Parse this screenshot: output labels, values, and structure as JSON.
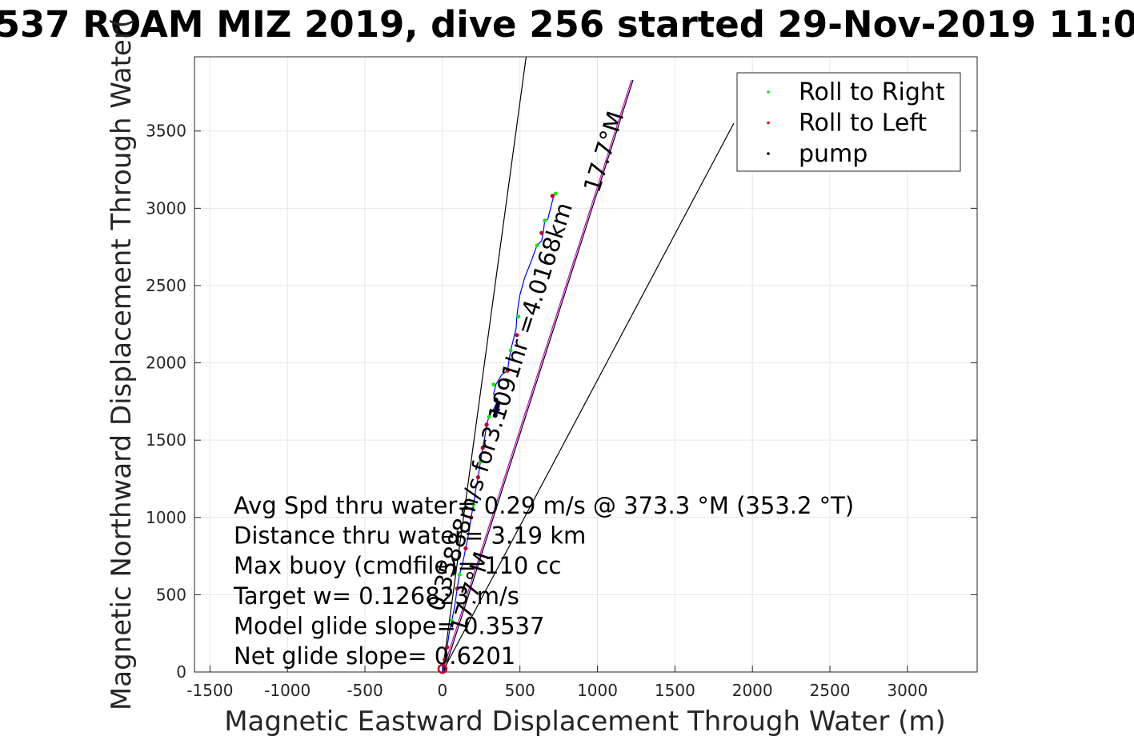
{
  "chart_data": {
    "type": "line",
    "title": "537 ROAM MIZ 2019, dive 256 started 29-Nov-2019 11:0",
    "xlabel": "Magnetic Eastward Displacement Through Water (m)",
    "ylabel": "Magnetic Northward Displacement Through Water(",
    "xlim": [
      -1600,
      3450
    ],
    "ylim": [
      0,
      3980
    ],
    "xticks": [
      -1500,
      -1000,
      -500,
      0,
      500,
      1000,
      1500,
      2000,
      2500,
      3000
    ],
    "yticks": [
      0,
      500,
      1000,
      1500,
      2000,
      2500,
      3000,
      3500
    ],
    "grid": true,
    "legend_position": "top-right",
    "legend": [
      {
        "label": "Roll to Right",
        "color": "#00ee00"
      },
      {
        "label": "Roll to Left",
        "color": "#ee0000"
      },
      {
        "label": "pump",
        "color": "#000000"
      }
    ],
    "track": {
      "color": "#0000ff",
      "x": [
        0,
        15,
        30,
        45,
        60,
        80,
        95,
        110,
        130,
        150,
        170,
        185,
        200,
        215,
        230,
        245,
        260,
        275,
        285,
        300,
        315,
        330,
        340,
        350,
        360,
        370,
        330,
        345,
        380,
        420,
        430,
        440,
        460,
        475,
        480,
        490,
        500,
        530,
        570,
        610,
        640,
        650,
        660,
        680,
        700,
        710,
        720,
        730,
        740
      ],
      "y": [
        0,
        80,
        160,
        260,
        330,
        430,
        540,
        630,
        700,
        800,
        900,
        1000,
        1080,
        1180,
        1260,
        1360,
        1450,
        1530,
        1600,
        1650,
        1680,
        1700,
        1720,
        1740,
        1720,
        1690,
        1800,
        1860,
        1920,
        1950,
        2020,
        2080,
        2160,
        2220,
        2300,
        2380,
        2440,
        2550,
        2650,
        2760,
        2790,
        2840,
        2920,
        2930,
        3010,
        3050,
        3085,
        3095,
        3100
      ]
    },
    "roll_right": {
      "x": [
        60,
        110,
        200,
        245,
        300,
        330,
        440,
        490,
        610,
        660,
        730
      ],
      "y": [
        330,
        630,
        1080,
        1360,
        1650,
        1860,
        2080,
        2300,
        2760,
        2920,
        3095
      ]
    },
    "roll_left": {
      "x": [
        15,
        30,
        95,
        150,
        185,
        230,
        260,
        285,
        420,
        480,
        640,
        710
      ],
      "y": [
        80,
        160,
        540,
        800,
        1000,
        1260,
        1450,
        1600,
        1950,
        2180,
        2840,
        3080
      ]
    },
    "pump": {
      "x": [
        340,
        345,
        350,
        355,
        360,
        345,
        350
      ],
      "y": [
        1660,
        1680,
        1700,
        1720,
        1740,
        1760,
        1690
      ]
    },
    "lines": [
      {
        "name": "left bound",
        "x": [
          0,
          540
        ],
        "y": [
          0,
          3980
        ],
        "color": "#000000"
      },
      {
        "name": "right bound",
        "x": [
          0,
          1880
        ],
        "y": [
          0,
          3550
        ],
        "color": "#000000"
      },
      {
        "name": "heading line",
        "x": [
          0,
          1220
        ],
        "y": [
          0,
          3830
        ],
        "color": "#cc00cc"
      },
      {
        "name": "heading line dark",
        "x": [
          10,
          1230
        ],
        "y": [
          0,
          3830
        ],
        "color": "#000000"
      }
    ],
    "annotations": [
      {
        "text": "Avg Spd thru water=  0.29 m/s @ 373.3 °M (353.2 °T)"
      },
      {
        "text": "Distance thru water= 3.19 km"
      },
      {
        "text": "Max buoy (cmdfile)= 110 cc"
      },
      {
        "text": "Target w= 0.126823 m/s"
      },
      {
        "text": "Model glide slope= 0.3537"
      },
      {
        "text": "Net glide slope= 0.6201"
      }
    ],
    "rotated_labels": [
      {
        "text": "0.35888m/s for3.1091hr =4.0168km",
        "x": 420,
        "y": 1700,
        "angle": 17.7
      },
      {
        "text": "17.7°M",
        "x": 1090,
        "y": 3350,
        "angle": 17.7
      },
      {
        "text": "17.7°M",
        "x": 230,
        "y": 500,
        "angle": 17.7
      }
    ]
  }
}
